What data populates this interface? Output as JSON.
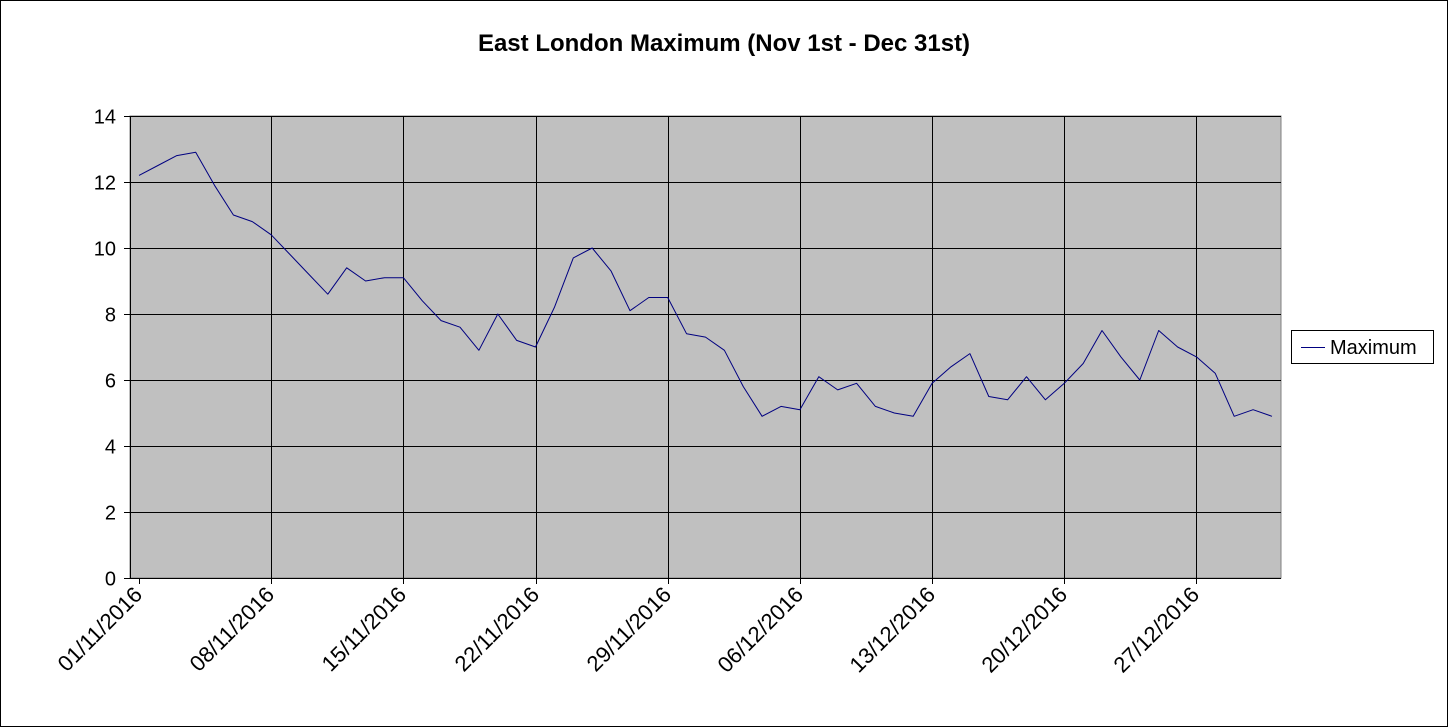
{
  "chart_data": {
    "type": "line",
    "title": "East London Maximum (Nov 1st - Dec 31st)",
    "xlabel": "",
    "ylabel": "",
    "ylim": [
      0,
      14
    ],
    "yticks": [
      0,
      2,
      4,
      6,
      8,
      10,
      12,
      14
    ],
    "x_tick_labels": [
      "01/11/2016",
      "08/11/2016",
      "15/11/2016",
      "22/11/2016",
      "29/11/2016",
      "06/12/2016",
      "13/12/2016",
      "20/12/2016",
      "27/12/2016"
    ],
    "grid": true,
    "plot_background": "#c0c0c0",
    "legend_position": "right",
    "x_dates": [
      "01/11/2016",
      "02/11/2016",
      "03/11/2016",
      "04/11/2016",
      "05/11/2016",
      "06/11/2016",
      "07/11/2016",
      "08/11/2016",
      "09/11/2016",
      "10/11/2016",
      "11/11/2016",
      "12/11/2016",
      "13/11/2016",
      "14/11/2016",
      "15/11/2016",
      "16/11/2016",
      "17/11/2016",
      "18/11/2016",
      "19/11/2016",
      "20/11/2016",
      "21/11/2016",
      "22/11/2016",
      "23/11/2016",
      "24/11/2016",
      "25/11/2016",
      "26/11/2016",
      "27/11/2016",
      "28/11/2016",
      "29/11/2016",
      "30/11/2016",
      "01/12/2016",
      "02/12/2016",
      "03/12/2016",
      "04/12/2016",
      "05/12/2016",
      "06/12/2016",
      "07/12/2016",
      "08/12/2016",
      "09/12/2016",
      "10/12/2016",
      "11/12/2016",
      "12/12/2016",
      "13/12/2016",
      "14/12/2016",
      "15/12/2016",
      "16/12/2016",
      "17/12/2016",
      "18/12/2016",
      "19/12/2016",
      "20/12/2016",
      "21/12/2016",
      "22/12/2016",
      "23/12/2016",
      "24/12/2016",
      "25/12/2016",
      "26/12/2016",
      "27/12/2016",
      "28/12/2016",
      "29/12/2016",
      "30/12/2016",
      "31/12/2016"
    ],
    "series": [
      {
        "name": "Maximum",
        "color": "#000080",
        "values": [
          12.2,
          12.5,
          12.8,
          12.9,
          11.9,
          11.0,
          10.8,
          10.4,
          9.8,
          9.2,
          8.6,
          9.4,
          9.0,
          9.1,
          9.1,
          8.4,
          7.8,
          7.6,
          6.9,
          8.0,
          7.2,
          7.0,
          8.2,
          9.7,
          10.0,
          9.3,
          8.1,
          8.5,
          8.5,
          7.4,
          7.3,
          6.9,
          5.8,
          4.9,
          5.2,
          5.1,
          6.1,
          5.7,
          5.9,
          5.2,
          5.0,
          4.9,
          5.9,
          6.4,
          6.8,
          5.5,
          5.4,
          6.1,
          5.4,
          5.9,
          6.5,
          7.5,
          6.7,
          6.0,
          7.5,
          7.0,
          6.7,
          6.2,
          4.9,
          5.1,
          4.9
        ]
      }
    ]
  }
}
